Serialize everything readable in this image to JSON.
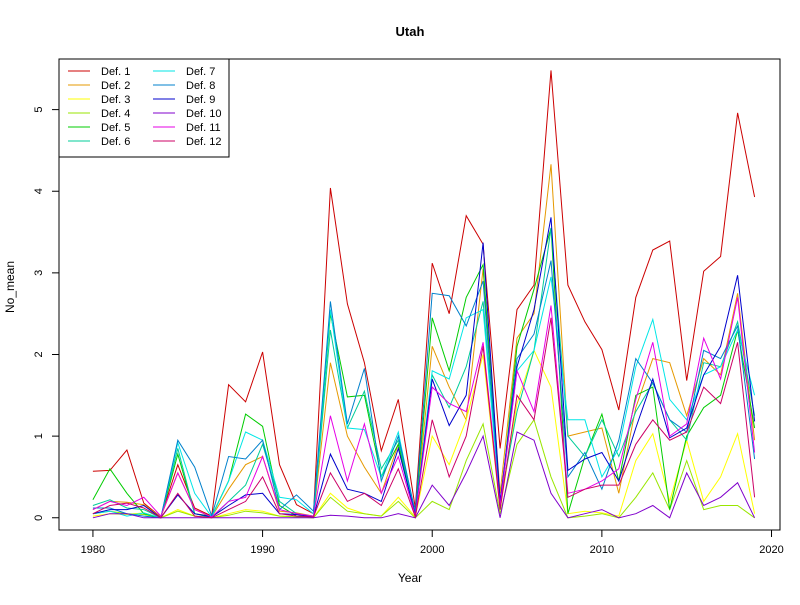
{
  "chart_data": {
    "type": "line",
    "title": "Utah",
    "xlabel": "Year",
    "ylabel": "No_mean",
    "xlim": [
      1978,
      2020.5
    ],
    "ylim": [
      -0.15,
      5.62
    ],
    "x_ticks": [
      1980,
      1990,
      2000,
      2010,
      2020
    ],
    "y_ticks": [
      0,
      1,
      2,
      3,
      4,
      5
    ],
    "grid": false,
    "legend_position": "top-left",
    "legend_columns": 2,
    "x": [
      1980,
      1981,
      1982,
      1983,
      1984,
      1985,
      1986,
      1987,
      1988,
      1989,
      1990,
      1991,
      1992,
      1993,
      1994,
      1995,
      1996,
      1997,
      1998,
      1999,
      2000,
      2001,
      2002,
      2003,
      2004,
      2005,
      2006,
      2007,
      2008,
      2009,
      2010,
      2011,
      2012,
      2013,
      2014,
      2015,
      2016,
      2017,
      2018,
      2019
    ],
    "series": [
      {
        "name": "Def. 1",
        "color": "#cc0000",
        "values": [
          0.57,
          0.58,
          0.83,
          0.18,
          0.01,
          0.65,
          0.12,
          0.02,
          1.63,
          1.42,
          2.03,
          0.65,
          0.16,
          0.05,
          4.04,
          2.62,
          1.9,
          0.82,
          1.45,
          0.12,
          3.12,
          2.5,
          3.7,
          3.35,
          0.85,
          2.55,
          2.85,
          5.48,
          2.85,
          2.4,
          2.06,
          1.32,
          2.7,
          3.28,
          3.39,
          1.68,
          3.02,
          3.2,
          4.96,
          3.93
        ]
      },
      {
        "name": "Def. 2",
        "color": "#e69900",
        "values": [
          0.1,
          0.2,
          0.19,
          0.16,
          0.01,
          0.55,
          0.1,
          0.01,
          0.35,
          0.65,
          0.75,
          0.08,
          0.06,
          0.02,
          1.9,
          1.0,
          0.62,
          0.3,
          0.9,
          0.02,
          2.1,
          1.6,
          1.2,
          3.05,
          0.3,
          2.2,
          2.5,
          4.33,
          1.0,
          1.05,
          1.1,
          0.3,
          1.35,
          1.95,
          1.9,
          1.25,
          1.95,
          1.75,
          2.75,
          0.95
        ]
      },
      {
        "name": "Def. 3",
        "color": "#ffff00",
        "values": [
          0.02,
          0.05,
          0.04,
          0.06,
          0.0,
          0.1,
          0.02,
          0.0,
          0.05,
          0.1,
          0.08,
          0.02,
          0.01,
          0.0,
          0.3,
          0.12,
          0.05,
          0.02,
          0.25,
          0.01,
          1.0,
          0.65,
          1.2,
          2.0,
          0.1,
          1.4,
          2.05,
          1.6,
          0.05,
          0.08,
          0.06,
          0.02,
          0.7,
          1.03,
          0.2,
          0.95,
          0.2,
          0.5,
          1.03,
          0.05
        ]
      },
      {
        "name": "Def. 4",
        "color": "#99e600",
        "values": [
          0.05,
          0.08,
          0.05,
          0.04,
          0.0,
          0.08,
          0.02,
          0.0,
          0.03,
          0.08,
          0.06,
          0.02,
          0.01,
          0.0,
          0.25,
          0.08,
          0.05,
          0.02,
          0.2,
          0.0,
          0.2,
          0.1,
          0.7,
          1.15,
          0.05,
          0.9,
          1.2,
          0.5,
          0.0,
          0.02,
          0.05,
          0.0,
          0.25,
          0.55,
          0.1,
          0.7,
          0.1,
          0.15,
          0.15,
          0.0
        ]
      },
      {
        "name": "Def. 5",
        "color": "#00cc00",
        "values": [
          0.22,
          0.6,
          0.3,
          0.05,
          0.0,
          0.78,
          0.05,
          0.02,
          0.45,
          1.27,
          1.12,
          0.15,
          0.02,
          0.01,
          2.5,
          1.48,
          1.5,
          0.5,
          0.9,
          0.05,
          2.45,
          1.8,
          2.7,
          3.1,
          0.1,
          2.1,
          2.8,
          3.55,
          0.05,
          0.75,
          1.27,
          0.45,
          1.5,
          1.6,
          0.1,
          1.0,
          1.35,
          1.5,
          2.3,
          1.1
        ]
      },
      {
        "name": "Def. 6",
        "color": "#00cc99",
        "values": [
          0.15,
          0.22,
          0.12,
          0.1,
          0.0,
          0.85,
          0.05,
          0.0,
          0.2,
          0.4,
          0.9,
          0.2,
          0.05,
          0.02,
          2.3,
          1.1,
          1.55,
          0.6,
          0.95,
          0.05,
          1.75,
          1.35,
          1.85,
          2.65,
          0.2,
          1.3,
          2.05,
          3.55,
          1.0,
          0.75,
          1.2,
          0.75,
          1.3,
          1.65,
          1.2,
          0.95,
          1.9,
          1.85,
          2.4,
          1.25
        ]
      },
      {
        "name": "Def. 7",
        "color": "#00e6e6",
        "values": [
          0.05,
          0.08,
          0.02,
          0.06,
          0.0,
          0.92,
          0.3,
          0.01,
          0.45,
          1.05,
          0.95,
          0.25,
          0.22,
          0.05,
          2.55,
          1.1,
          1.08,
          0.5,
          1.05,
          0.03,
          1.8,
          1.7,
          2.45,
          2.55,
          0.15,
          1.8,
          2.05,
          2.95,
          1.2,
          1.2,
          0.5,
          0.85,
          1.85,
          2.43,
          1.45,
          1.2,
          1.75,
          1.85,
          2.3,
          1.5
        ]
      },
      {
        "name": "Def. 8",
        "color": "#0080cc",
        "values": [
          0.12,
          0.12,
          0.05,
          0.02,
          0.0,
          0.95,
          0.62,
          0.02,
          0.75,
          0.72,
          0.95,
          0.1,
          0.28,
          0.08,
          2.65,
          1.15,
          1.83,
          0.45,
          1.0,
          0.07,
          2.75,
          2.72,
          2.35,
          2.9,
          0.18,
          1.95,
          2.25,
          3.15,
          0.5,
          0.8,
          0.35,
          0.95,
          1.95,
          1.65,
          1.2,
          1.05,
          2.05,
          1.95,
          2.35,
          0.72
        ]
      },
      {
        "name": "Def. 9",
        "color": "#0000cc",
        "values": [
          0.05,
          0.1,
          0.1,
          0.15,
          0.0,
          0.28,
          0.05,
          0.01,
          0.15,
          0.28,
          0.3,
          0.05,
          0.04,
          0.01,
          0.78,
          0.35,
          0.3,
          0.2,
          0.85,
          0.03,
          1.7,
          1.13,
          1.5,
          3.37,
          0.2,
          1.85,
          2.55,
          3.68,
          0.58,
          0.72,
          0.8,
          0.45,
          1.1,
          1.7,
          0.98,
          1.1,
          1.75,
          2.1,
          2.97,
          1.18
        ]
      },
      {
        "name": "Def. 10",
        "color": "#8000cc",
        "values": [
          0.0,
          0.05,
          0.05,
          0.0,
          0.0,
          0.0,
          0.0,
          0.0,
          0.0,
          0.0,
          0.0,
          0.0,
          0.0,
          0.0,
          0.03,
          0.02,
          0.0,
          0.0,
          0.05,
          0.0,
          0.4,
          0.15,
          0.55,
          1.0,
          0.0,
          1.05,
          0.95,
          0.3,
          0.0,
          0.05,
          0.1,
          0.0,
          0.05,
          0.15,
          0.0,
          0.55,
          0.15,
          0.25,
          0.43,
          0.0
        ]
      },
      {
        "name": "Def. 11",
        "color": "#e600e6",
        "values": [
          0.1,
          0.2,
          0.15,
          0.25,
          0.02,
          0.55,
          0.1,
          0.01,
          0.2,
          0.25,
          0.75,
          0.1,
          0.05,
          0.02,
          1.25,
          0.45,
          1.15,
          0.3,
          0.75,
          0.02,
          1.6,
          1.4,
          1.3,
          2.15,
          0.15,
          1.8,
          1.3,
          2.6,
          0.3,
          0.35,
          0.45,
          0.6,
          1.45,
          2.15,
          1.0,
          1.15,
          2.2,
          1.7,
          2.7,
          0.8
        ]
      },
      {
        "name": "Def. 12",
        "color": "#cc0066",
        "values": [
          0.05,
          0.15,
          0.18,
          0.12,
          0.0,
          0.3,
          0.02,
          0.0,
          0.1,
          0.2,
          0.5,
          0.05,
          0.02,
          0.01,
          0.55,
          0.2,
          0.3,
          0.15,
          0.6,
          0.01,
          1.2,
          0.5,
          1.0,
          2.1,
          0.1,
          1.5,
          1.2,
          2.45,
          0.25,
          0.35,
          0.4,
          0.4,
          0.9,
          1.2,
          0.95,
          1.05,
          1.6,
          1.4,
          2.15,
          0.25
        ]
      }
    ]
  }
}
